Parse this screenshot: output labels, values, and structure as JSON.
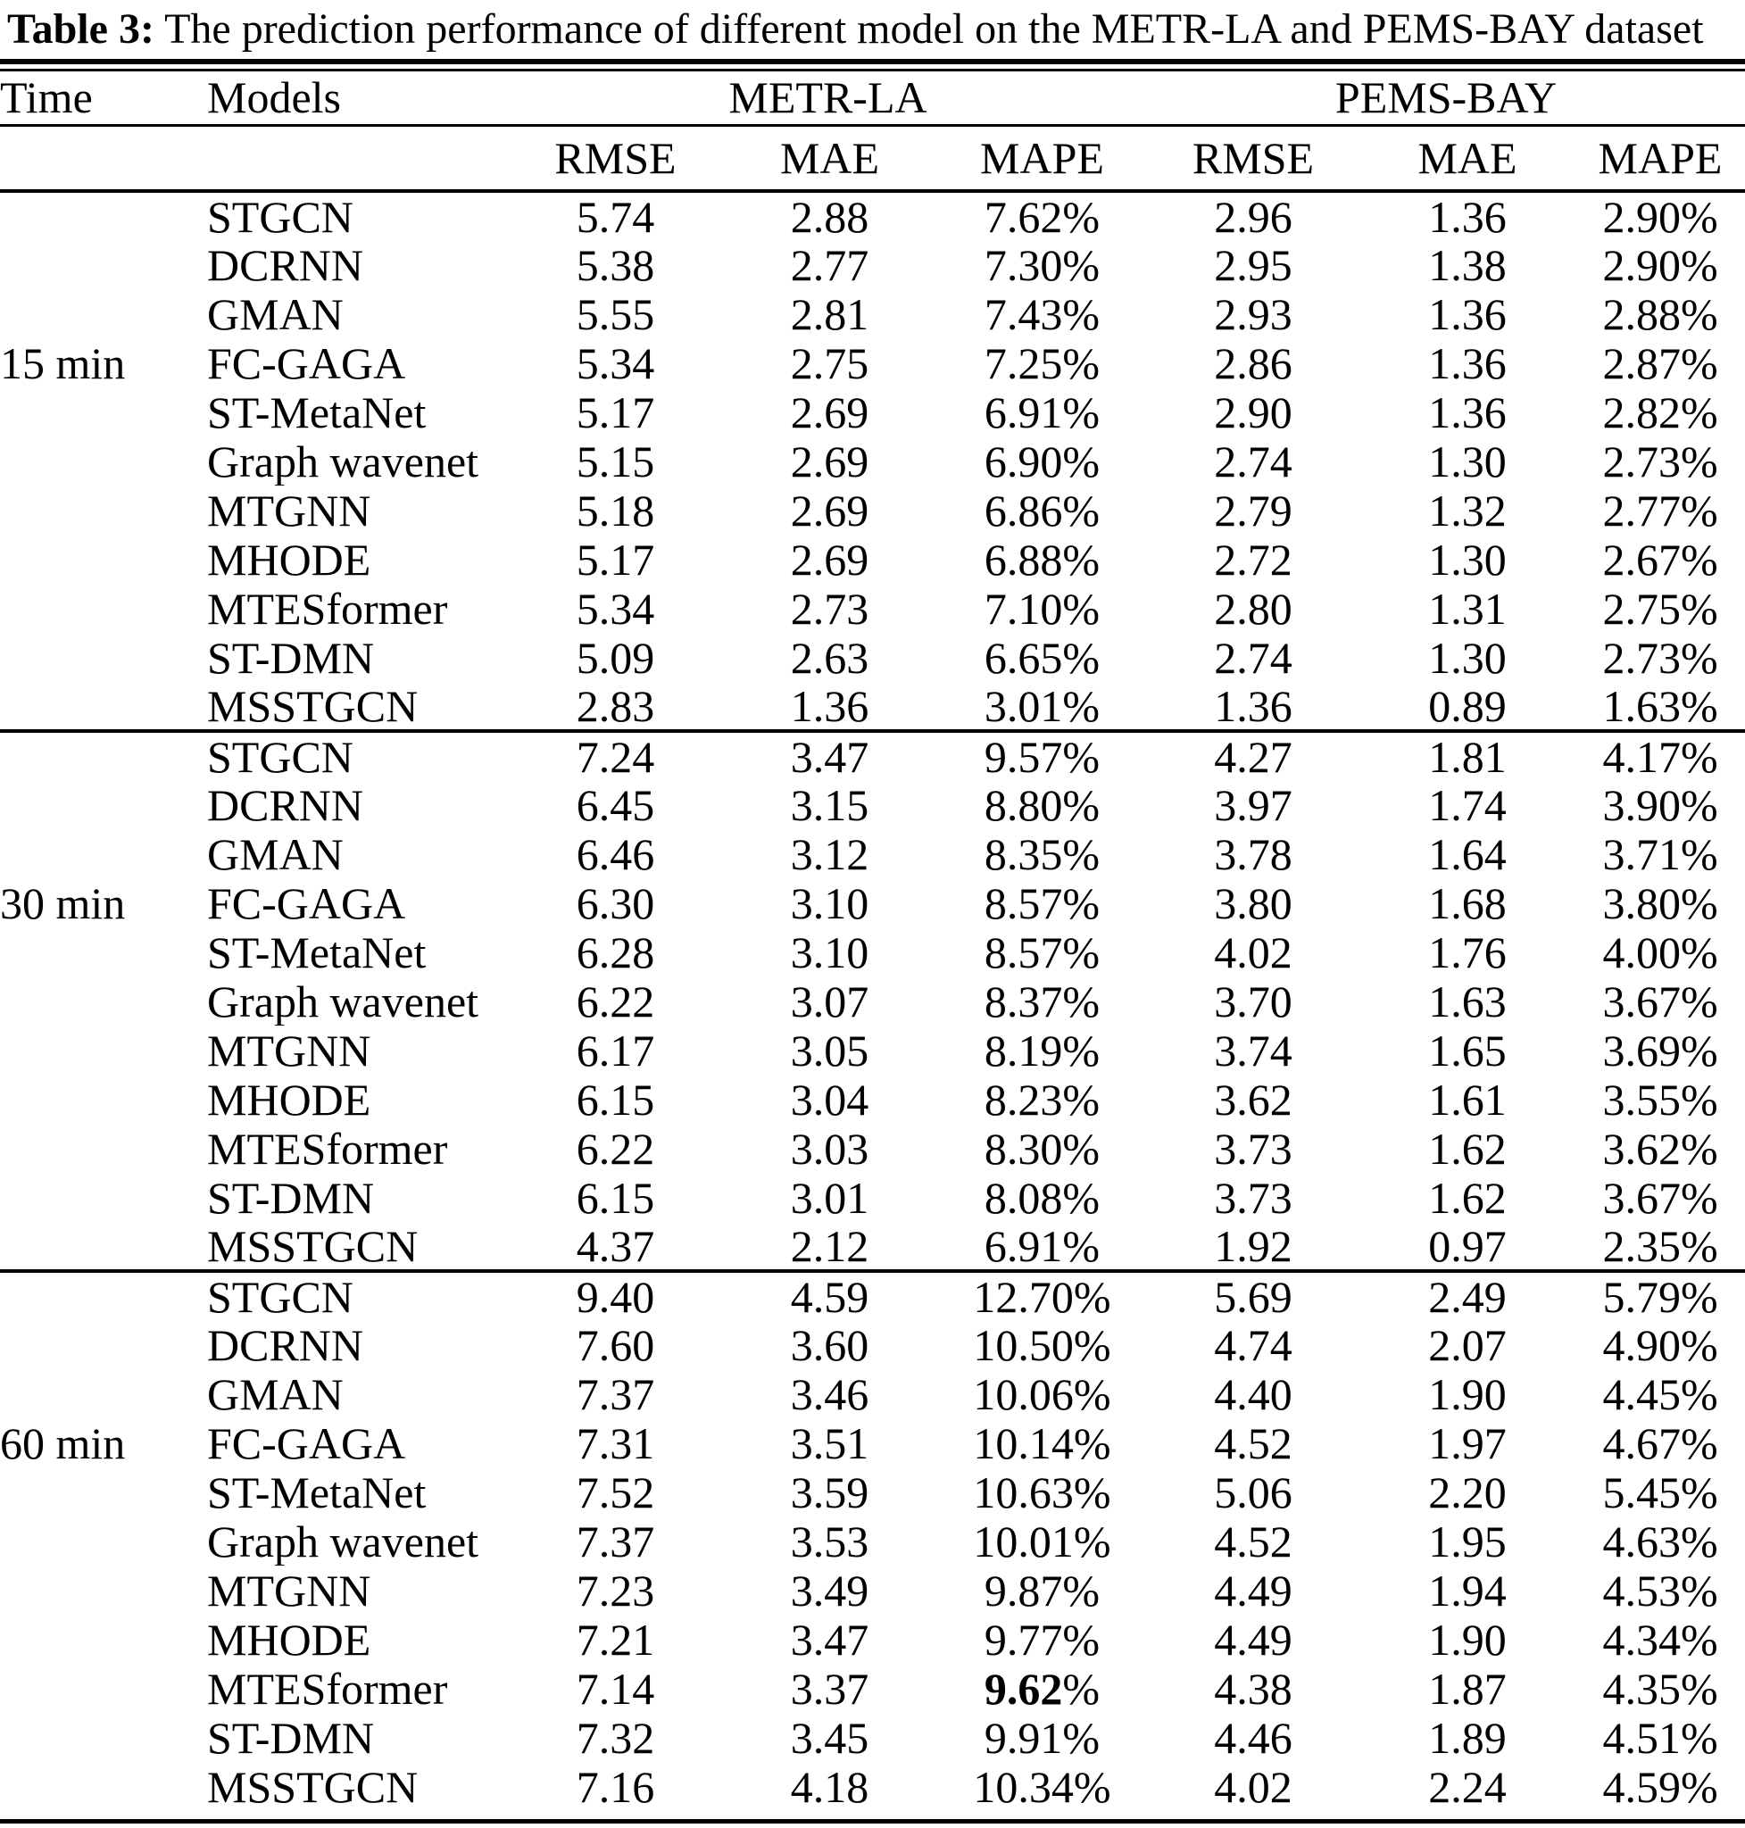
{
  "caption": {
    "label": "Table 3:",
    "text": " The prediction performance of different model on the METR-LA and PEMS-BAY dataset"
  },
  "table": {
    "header": {
      "time": "Time",
      "models": "Models",
      "dataset_groups": [
        "METR-LA",
        "PEMS-BAY"
      ],
      "metrics": [
        "RMSE",
        "MAE",
        "MAPE",
        "RMSE",
        "MAE",
        "MAPE"
      ]
    },
    "groups": [
      {
        "time_label": "15 min",
        "time_label_row": 3,
        "rows": [
          {
            "model": "STGCN",
            "values": [
              "5.74",
              "2.88",
              "7.62%",
              "2.96",
              "1.36",
              "2.90%"
            ]
          },
          {
            "model": "DCRNN",
            "values": [
              "5.38",
              "2.77",
              "7.30%",
              "2.95",
              "1.38",
              "2.90%"
            ]
          },
          {
            "model": "GMAN",
            "values": [
              "5.55",
              "2.81",
              "7.43%",
              "2.93",
              "1.36",
              "2.88%"
            ]
          },
          {
            "model": "FC-GAGA",
            "values": [
              "5.34",
              "2.75",
              "7.25%",
              "2.86",
              "1.36",
              "2.87%"
            ]
          },
          {
            "model": "ST-MetaNet",
            "values": [
              "5.17",
              "2.69",
              "6.91%",
              "2.90",
              "1.36",
              "2.82%"
            ]
          },
          {
            "model": "Graph wavenet",
            "values": [
              "5.15",
              "2.69",
              "6.90%",
              "2.74",
              "1.30",
              "2.73%"
            ]
          },
          {
            "model": "MTGNN",
            "values": [
              "5.18",
              "2.69",
              "6.86%",
              "2.79",
              "1.32",
              "2.77%"
            ]
          },
          {
            "model": "MHODE",
            "values": [
              "5.17",
              "2.69",
              "6.88%",
              "2.72",
              "1.30",
              "2.67%"
            ]
          },
          {
            "model": "MTESformer",
            "values": [
              "5.34",
              "2.73",
              "7.10%",
              "2.80",
              "1.31",
              "2.75%"
            ]
          },
          {
            "model": "ST-DMN",
            "values": [
              "5.09",
              "2.63",
              "6.65%",
              "2.74",
              "1.30",
              "2.73%"
            ]
          },
          {
            "model": "MSSTGCN",
            "values": [
              "2.83",
              "1.36",
              "3.01%",
              "1.36",
              "0.89",
              "1.63%"
            ],
            "bold": [
              true,
              true,
              true,
              true,
              true,
              true
            ]
          }
        ]
      },
      {
        "time_label": "30 min",
        "time_label_row": 3,
        "rows": [
          {
            "model": "STGCN",
            "values": [
              "7.24",
              "3.47",
              "9.57%",
              "4.27",
              "1.81",
              "4.17%"
            ]
          },
          {
            "model": "DCRNN",
            "values": [
              "6.45",
              "3.15",
              "8.80%",
              "3.97",
              "1.74",
              "3.90%"
            ]
          },
          {
            "model": "GMAN",
            "values": [
              "6.46",
              "3.12",
              "8.35%",
              "3.78",
              "1.64",
              "3.71%"
            ]
          },
          {
            "model": "FC-GAGA",
            "values": [
              "6.30",
              "3.10",
              "8.57%",
              "3.80",
              "1.68",
              "3.80%"
            ]
          },
          {
            "model": "ST-MetaNet",
            "values": [
              "6.28",
              "3.10",
              "8.57%",
              "4.02",
              "1.76",
              "4.00%"
            ]
          },
          {
            "model": "Graph wavenet",
            "values": [
              "6.22",
              "3.07",
              "8.37%",
              "3.70",
              "1.63",
              "3.67%"
            ]
          },
          {
            "model": "MTGNN",
            "values": [
              "6.17",
              "3.05",
              "8.19%",
              "3.74",
              "1.65",
              "3.69%"
            ]
          },
          {
            "model": "MHODE",
            "values": [
              "6.15",
              "3.04",
              "8.23%",
              "3.62",
              "1.61",
              "3.55%"
            ]
          },
          {
            "model": "MTESformer",
            "values": [
              "6.22",
              "3.03",
              "8.30%",
              "3.73",
              "1.62",
              "3.62%"
            ]
          },
          {
            "model": "ST-DMN",
            "values": [
              "6.15",
              "3.01",
              "8.08%",
              "3.73",
              "1.62",
              "3.67%"
            ]
          },
          {
            "model": "MSSTGCN",
            "values": [
              "4.37",
              "2.12",
              "6.91%",
              "1.92",
              "0.97",
              "2.35%"
            ],
            "bold": [
              true,
              true,
              true,
              true,
              true,
              true
            ]
          }
        ]
      },
      {
        "time_label": "60 min",
        "time_label_row": 3,
        "rows": [
          {
            "model": "STGCN",
            "values": [
              "9.40",
              "4.59",
              "12.70%",
              "5.69",
              "2.49",
              "5.79%"
            ]
          },
          {
            "model": "DCRNN",
            "values": [
              "7.60",
              "3.60",
              "10.50%",
              "4.74",
              "2.07",
              "4.90%"
            ]
          },
          {
            "model": "GMAN",
            "values": [
              "7.37",
              "3.46",
              "10.06%",
              "4.40",
              "1.90",
              "4.45%"
            ]
          },
          {
            "model": "FC-GAGA",
            "values": [
              "7.31",
              "3.51",
              "10.14%",
              "4.52",
              "1.97",
              "4.67%"
            ]
          },
          {
            "model": "ST-MetaNet",
            "values": [
              "7.52",
              "3.59",
              "10.63%",
              "5.06",
              "2.20",
              "5.45%"
            ]
          },
          {
            "model": "Graph wavenet",
            "values": [
              "7.37",
              "3.53",
              "10.01%",
              "4.52",
              "1.95",
              "4.63%"
            ]
          },
          {
            "model": "MTGNN",
            "values": [
              "7.23",
              "3.49",
              "9.87%",
              "4.49",
              "1.94",
              "4.53%"
            ]
          },
          {
            "model": "MHODE",
            "values": [
              "7.21",
              "3.47",
              "9.77%",
              "4.49",
              "1.90",
              "4.34%"
            ]
          },
          {
            "model": "MTESformer",
            "values": [
              "7.14",
              "3.37",
              "9.62%",
              "4.38",
              "1.87",
              "4.35%"
            ],
            "bold": [
              true,
              true,
              "digits",
              false,
              true,
              true
            ]
          },
          {
            "model": "ST-DMN",
            "values": [
              "7.32",
              "3.45",
              "9.91%",
              "4.46",
              "1.89",
              "4.51%"
            ]
          },
          {
            "model": "MSSTGCN",
            "values": [
              "7.16",
              "4.18",
              "10.34%",
              "4.02",
              "2.24",
              "4.59%"
            ],
            "bold": [
              false,
              false,
              false,
              true,
              false,
              false
            ]
          }
        ]
      }
    ]
  }
}
